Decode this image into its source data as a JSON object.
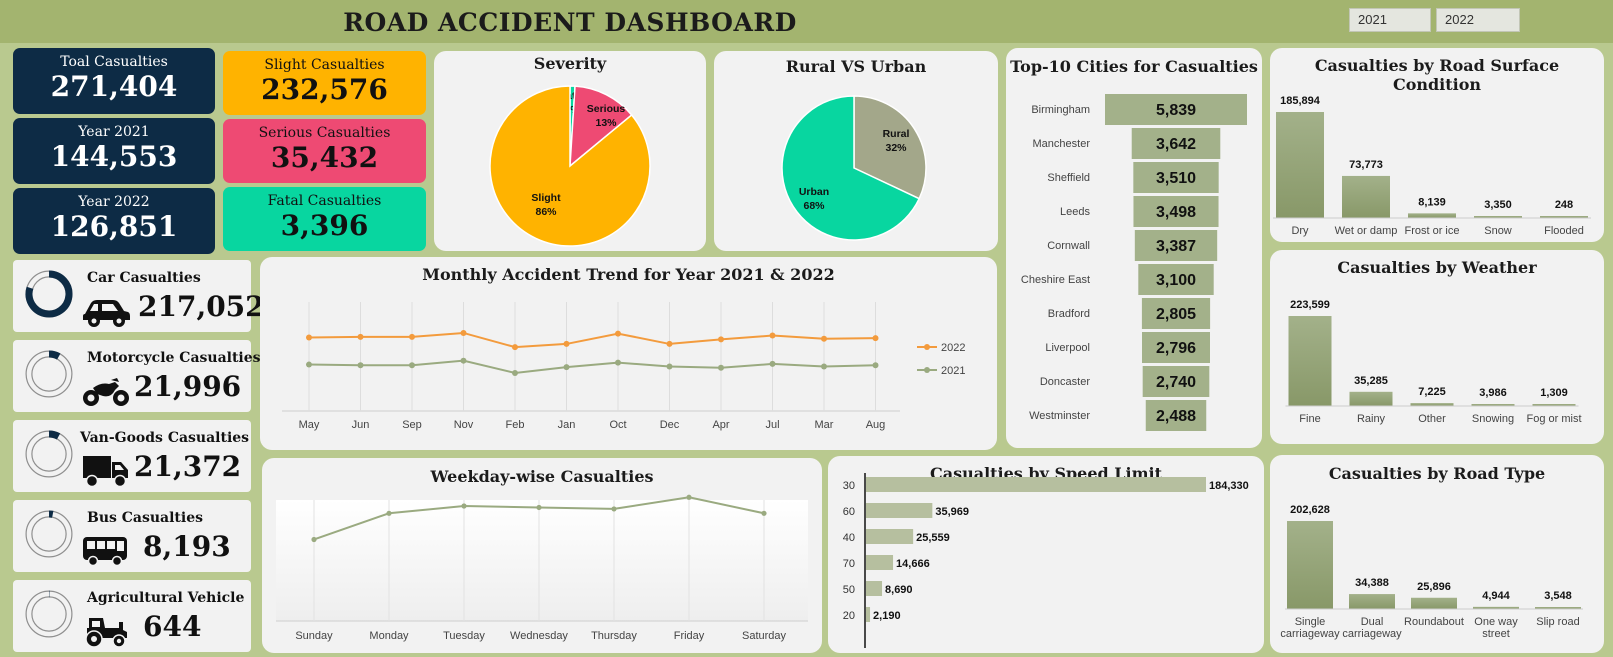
{
  "header": {
    "title": "ROAD ACCIDENT DASHBOARD",
    "slicers": [
      "2021",
      "2022"
    ]
  },
  "kpis": {
    "total": {
      "label": "Toal Casualties",
      "value": "271,404"
    },
    "year2021": {
      "label": "Year 2021",
      "value": "144,553"
    },
    "year2022": {
      "label": "Year 2022",
      "value": "126,851"
    },
    "slight": {
      "label": "Slight Casualties",
      "value": "232,576"
    },
    "serious": {
      "label": "Serious Casualties",
      "value": "35,432"
    },
    "fatal": {
      "label": "Fatal Casualties",
      "value": "3,396"
    }
  },
  "vehicles": [
    {
      "label": "Car Casualties",
      "value": "217,052",
      "share": 0.8,
      "icon": "car-icon"
    },
    {
      "label": "Motorcycle Casualties",
      "value": "21,996",
      "share": 0.081,
      "icon": "motorcycle-icon"
    },
    {
      "label": "Van-Goods Casualties",
      "value": "21,372",
      "share": 0.079,
      "icon": "truck-icon"
    },
    {
      "label": "Bus Casualties",
      "value": "8,193",
      "share": 0.03,
      "icon": "bus-icon"
    },
    {
      "label": "Agricultural Vehicle",
      "value": "644",
      "share": 0.003,
      "icon": "tractor-icon"
    }
  ],
  "colors": {
    "navy": "#0d2b45",
    "slight": "#ffb300",
    "serious": "#ee4a73",
    "fatal": "#08d6a0",
    "olive": "#a3b18a",
    "line2022": "#f39b3d",
    "line2021": "#9aaa80"
  },
  "chart_data": [
    {
      "type": "pie",
      "title": "Severity",
      "labels": [
        "Slight",
        "Serious",
        "Fatal"
      ],
      "values": [
        86,
        13,
        1
      ],
      "display": [
        "86%",
        "13%",
        "1%"
      ],
      "colors": [
        "#ffb300",
        "#ee4a73",
        "#08d6a0"
      ]
    },
    {
      "type": "pie",
      "title": "Rural VS Urban",
      "labels": [
        "Rural",
        "Urban"
      ],
      "values": [
        32,
        68
      ],
      "display": [
        "32%",
        "68%"
      ],
      "colors": [
        "#a3a78a",
        "#08d6a0"
      ]
    },
    {
      "type": "bar",
      "title": "Top-10 Cities for Casualties",
      "categories": [
        "Birmingham",
        "Manchester",
        "Sheffield",
        "Leeds",
        "Cornwall",
        "Cheshire East",
        "Bradford",
        "Liverpool",
        "Doncaster",
        "Westminster"
      ],
      "values": [
        5839,
        3642,
        3510,
        3498,
        3387,
        3100,
        2805,
        2796,
        2740,
        2488
      ],
      "labels": [
        "5,839",
        "3,642",
        "3,510",
        "3,498",
        "3,387",
        "3,100",
        "2,805",
        "2,796",
        "2,740",
        "2,488"
      ]
    },
    {
      "type": "bar",
      "title": "Casualties by Road Surface Condition",
      "categories": [
        "Dry",
        "Wet or damp",
        "Frost or ice",
        "Snow",
        "Flooded"
      ],
      "values": [
        185894,
        73773,
        8139,
        3350,
        248
      ],
      "labels": [
        "185,894",
        "73,773",
        "8,139",
        "3,350",
        "248"
      ]
    },
    {
      "type": "bar",
      "title": "Casualties by Weather",
      "categories": [
        "Fine",
        "Rainy",
        "Other",
        "Snowing",
        "Fog or mist"
      ],
      "values": [
        223599,
        35285,
        7225,
        3986,
        1309
      ],
      "labels": [
        "223,599",
        "35,285",
        "7,225",
        "3,986",
        "1,309"
      ]
    },
    {
      "type": "line",
      "title": "Monthly Accident Trend for Year 2021 & 2022",
      "categories": [
        "May",
        "Jun",
        "Sep",
        "Nov",
        "Feb",
        "Jan",
        "Oct",
        "Dec",
        "Apr",
        "Jul",
        "Mar",
        "Aug"
      ],
      "series": [
        {
          "name": "2022",
          "values": [
            11400,
            11500,
            11500,
            12100,
            9900,
            10400,
            12000,
            10400,
            11100,
            11700,
            11200,
            11300
          ]
        },
        {
          "name": "2021",
          "values": [
            7200,
            7100,
            7100,
            7800,
            5900,
            6800,
            7500,
            6900,
            6700,
            7300,
            6900,
            7100
          ]
        }
      ],
      "ylim": [
        0,
        20000
      ]
    },
    {
      "type": "line",
      "title": "Weekday-wise Casualties",
      "categories": [
        "Sunday",
        "Monday",
        "Tuesday",
        "Wednesday",
        "Thursday",
        "Friday",
        "Saturday"
      ],
      "series": [
        {
          "values": [
            28000,
            37000,
            39500,
            39000,
            38500,
            42500,
            37000
          ]
        }
      ],
      "ylim": [
        0,
        45000
      ]
    },
    {
      "type": "bar",
      "title": "Casualties by Speed Limit",
      "orientation": "horizontal",
      "categories": [
        "30",
        "60",
        "40",
        "70",
        "50",
        "20"
      ],
      "values": [
        184330,
        35969,
        25559,
        14666,
        8690,
        2190
      ],
      "labels": [
        "184,330",
        "35,969",
        "25,559",
        "14,666",
        "8,690",
        "2,190"
      ]
    },
    {
      "type": "bar",
      "title": "Casualties by Road Type",
      "categories": [
        [
          "Single",
          "carriageway"
        ],
        [
          "Dual",
          "carriageway"
        ],
        [
          "Roundabout"
        ],
        [
          "One way",
          "street"
        ],
        [
          "Slip road"
        ]
      ],
      "values": [
        202628,
        34388,
        25896,
        4944,
        3548
      ],
      "labels": [
        "202,628",
        "34,388",
        "25,896",
        "4,944",
        "3,548"
      ]
    }
  ]
}
